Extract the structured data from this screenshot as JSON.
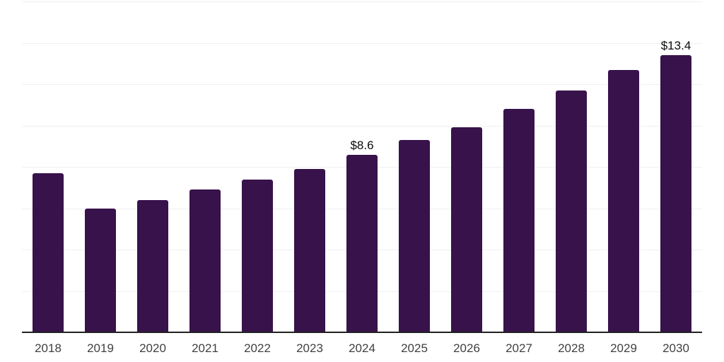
{
  "chart_data": {
    "type": "bar",
    "title": "",
    "xlabel": "",
    "ylabel": "",
    "categories": [
      "2018",
      "2019",
      "2020",
      "2021",
      "2022",
      "2023",
      "2024",
      "2025",
      "2026",
      "2027",
      "2028",
      "2029",
      "2030"
    ],
    "values": [
      7.7,
      6.0,
      6.4,
      6.9,
      7.4,
      7.9,
      8.6,
      9.3,
      9.9,
      10.8,
      11.7,
      12.7,
      13.4
    ],
    "data_labels": {
      "2024": "$8.6",
      "2030": "$13.4"
    },
    "ylim": [
      0,
      16
    ],
    "gridline_step": 2,
    "grid": true,
    "legend": "none",
    "colors": {
      "bar": "#38124B",
      "gridline": "#F0F0F0",
      "axis_line": "#212121",
      "tick_label": "#404040",
      "data_label": "#0A0A0A",
      "background": "#FFFFFF"
    }
  }
}
